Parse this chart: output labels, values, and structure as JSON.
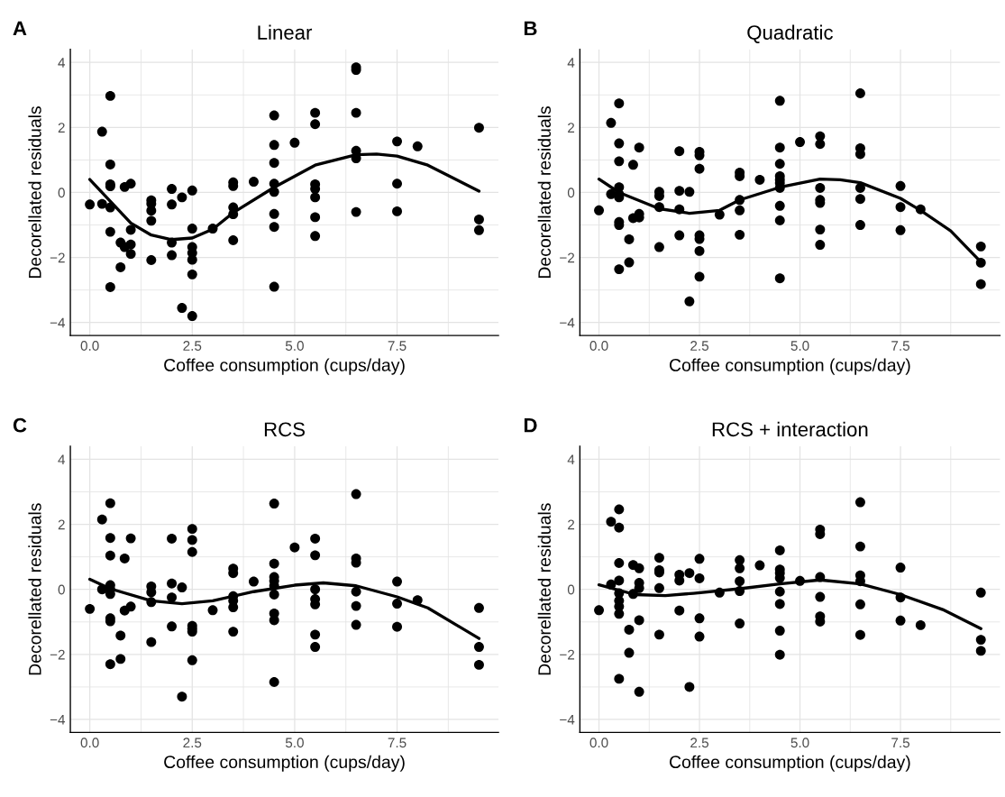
{
  "chart_data": [
    {
      "type": "scatter",
      "title": "Linear",
      "xlabel": "Coffee consumption (cups/day)",
      "ylabel": "Decorellated residuals",
      "annotations": [
        "A"
      ],
      "grid": true,
      "legend": false,
      "marker": "circle",
      "xlim": [
        -0.475,
        9.975
      ],
      "ylim": [
        -4.4,
        4.4
      ],
      "xticks": [
        {
          "value": 0,
          "label": "0.0"
        },
        {
          "value": 2.5,
          "label": "2.5"
        },
        {
          "value": 5,
          "label": "5.0"
        },
        {
          "value": 7.5,
          "label": "7.5"
        }
      ],
      "yticks": [
        -4,
        -2,
        0,
        2,
        4
      ],
      "series": [
        {
          "color": "#000000",
          "x": [
            0,
            0.3,
            0.3,
            0.5,
            0.5,
            0.5,
            0.5,
            0.5,
            0.5,
            0.5,
            0.75,
            0.75,
            0.85,
            0.85,
            1,
            1,
            1,
            1,
            1.5,
            1.5,
            1.5,
            1.5,
            1.5,
            2,
            2,
            2,
            2,
            2.25,
            2.25,
            2.5,
            2.5,
            2.5,
            2.5,
            2.5,
            2.5,
            2.5,
            3,
            3.5,
            3.5,
            3.5,
            3.5,
            3.5,
            4,
            4.5,
            4.5,
            4.5,
            4.5,
            4.5,
            4.5,
            4.5,
            4.5,
            5,
            5.5,
            5.5,
            5.5,
            5.5,
            5.5,
            5.5,
            5.5,
            6.5,
            6.5,
            6.5,
            6.5,
            6.5,
            6.5,
            7.5,
            7.5,
            7.5,
            8,
            9.5,
            9.5,
            9.5
          ],
          "values": [
            -0.37,
            1.87,
            -0.35,
            2.97,
            0.86,
            0.25,
            0.19,
            -0.46,
            -1.21,
            -2.91,
            -1.54,
            -2.3,
            0.17,
            -1.68,
            0.27,
            -1.15,
            -1.6,
            -1.89,
            -0.24,
            -0.35,
            -0.56,
            -0.87,
            -2.08,
            0.11,
            -0.37,
            -1.54,
            -1.93,
            -0.15,
            -3.55,
            0.06,
            -1.11,
            -1.68,
            -1.86,
            -2.07,
            -2.52,
            -3.8,
            -1.11,
            0.31,
            0.2,
            -0.46,
            -0.67,
            -1.47,
            0.33,
            2.37,
            1.46,
            0.91,
            0.27,
            0.02,
            -0.66,
            -1.06,
            -2.9,
            1.53,
            2.45,
            2.1,
            0.25,
            0.11,
            -0.15,
            -0.76,
            -1.34,
            3.85,
            3.77,
            2.45,
            1.28,
            1.05,
            -0.6,
            1.57,
            0.27,
            -0.58,
            1.42,
            1.99,
            -0.83,
            -1.16
          ]
        },
        {
          "type": "line",
          "color": "#000000",
          "marker": "none",
          "line_style": "solid",
          "x": [
            0,
            1,
            1.5,
            2,
            2.5,
            3,
            3.5,
            4.5,
            5.5,
            6.5,
            7,
            7.5,
            8.25,
            9.5
          ],
          "values": [
            0.4,
            -0.94,
            -1.31,
            -1.45,
            -1.4,
            -1.13,
            -0.62,
            0.16,
            0.84,
            1.16,
            1.18,
            1.12,
            0.84,
            0.04
          ]
        }
      ]
    },
    {
      "type": "scatter",
      "title": "Quadratic",
      "xlabel": "Coffee consumption (cups/day)",
      "ylabel": "Decorellated residuals",
      "annotations": [
        "B"
      ],
      "grid": true,
      "legend": false,
      "marker": "circle",
      "xlim": [
        -0.475,
        9.975
      ],
      "ylim": [
        -4.4,
        4.4
      ],
      "xticks": [
        {
          "value": 0,
          "label": "0.0"
        },
        {
          "value": 2.5,
          "label": "2.5"
        },
        {
          "value": 5,
          "label": "5.0"
        },
        {
          "value": 7.5,
          "label": "7.5"
        }
      ],
      "yticks": [
        -4,
        -2,
        0,
        2,
        4
      ],
      "series": [
        {
          "color": "#000000",
          "x": [
            0,
            0.3,
            0.3,
            0.5,
            0.5,
            0.5,
            0.5,
            0.5,
            0.5,
            0.5,
            0.5,
            0.5,
            0.75,
            0.75,
            0.85,
            0.85,
            1,
            1,
            1,
            1.5,
            1.5,
            1.5,
            1.5,
            2,
            2,
            2,
            2,
            2.25,
            2.25,
            2.5,
            2.5,
            2.5,
            2.5,
            2.5,
            2.5,
            2.5,
            3,
            3.5,
            3.5,
            3.5,
            3.5,
            3.5,
            4,
            4.5,
            4.5,
            4.5,
            4.5,
            4.5,
            4.5,
            4.5,
            4.5,
            4.5,
            4.5,
            5,
            5.5,
            5.5,
            5.5,
            5.5,
            5.5,
            5.5,
            5.5,
            6.5,
            6.5,
            6.5,
            6.5,
            6.5,
            6.5,
            7.5,
            7.5,
            7.5,
            8,
            9.5,
            9.5,
            9.5
          ],
          "values": [
            -0.55,
            2.14,
            -0.05,
            2.74,
            1.51,
            0.96,
            0.16,
            -0.05,
            -0.15,
            -0.91,
            -1.0,
            -2.36,
            -1.44,
            -2.15,
            0.85,
            -0.79,
            1.38,
            -0.66,
            -0.77,
            0.02,
            -0.11,
            -0.45,
            -1.68,
            1.27,
            0.05,
            -0.52,
            -1.32,
            0.02,
            -3.35,
            1.25,
            1.14,
            0.73,
            -1.32,
            -1.43,
            -1.8,
            -2.59,
            -0.68,
            0.61,
            0.5,
            -0.23,
            -0.55,
            -1.3,
            0.39,
            2.82,
            1.38,
            0.88,
            0.5,
            0.39,
            0.29,
            0.14,
            -0.41,
            -0.86,
            -2.64,
            1.55,
            1.73,
            1.49,
            0.14,
            -0.23,
            -0.32,
            -1.14,
            -1.61,
            3.05,
            1.36,
            1.18,
            0.14,
            -0.2,
            -1.0,
            0.2,
            -0.45,
            -1.16,
            -0.52,
            -1.66,
            -2.16,
            -2.82
          ]
        },
        {
          "type": "line",
          "color": "#000000",
          "marker": "none",
          "line_style": "solid",
          "x": [
            0,
            0.5,
            1.5,
            2.25,
            3,
            3.5,
            4.5,
            5.5,
            6,
            6.5,
            7.5,
            8,
            8.75,
            9.5
          ],
          "values": [
            0.41,
            0,
            -0.5,
            -0.64,
            -0.55,
            -0.23,
            0.16,
            0.41,
            0.39,
            0.3,
            -0.18,
            -0.55,
            -1.18,
            -2.14
          ]
        }
      ]
    },
    {
      "type": "scatter",
      "title": "RCS",
      "xlabel": "Coffee consumption (cups/day)",
      "ylabel": "Decorellated residuals",
      "annotations": [
        "C"
      ],
      "grid": true,
      "legend": false,
      "marker": "circle",
      "xlim": [
        -0.475,
        9.975
      ],
      "ylim": [
        -4.4,
        4.4
      ],
      "xticks": [
        {
          "value": 0,
          "label": "0.0"
        },
        {
          "value": 2.5,
          "label": "2.5"
        },
        {
          "value": 5,
          "label": "5.0"
        },
        {
          "value": 7.5,
          "label": "7.5"
        }
      ],
      "yticks": [
        -4,
        -2,
        0,
        2,
        4
      ],
      "series": [
        {
          "color": "#000000",
          "x": [
            0,
            0.3,
            0.3,
            0.5,
            0.5,
            0.5,
            0.5,
            0.5,
            0.5,
            0.5,
            0.5,
            0.5,
            0.75,
            0.75,
            0.85,
            0.85,
            1,
            1,
            1.5,
            1.5,
            1.5,
            1.5,
            2,
            2,
            2,
            2,
            2.25,
            2.25,
            2.5,
            2.5,
            2.5,
            2.5,
            2.5,
            2.5,
            2.5,
            3,
            3.5,
            3.5,
            3.5,
            3.5,
            3.5,
            3.5,
            4,
            4.5,
            4.5,
            4.5,
            4.5,
            4.5,
            4.5,
            4.5,
            4.5,
            4.5,
            5,
            5.5,
            5.5,
            5.5,
            5.5,
            5.5,
            5.5,
            5.5,
            6.5,
            6.5,
            6.5,
            6.5,
            6.5,
            6.5,
            7.5,
            7.5,
            7.5,
            8,
            9.5,
            9.5,
            9.5
          ],
          "values": [
            -0.6,
            2.15,
            0,
            2.65,
            1.58,
            1.04,
            0.13,
            0,
            -0.14,
            -0.89,
            -0.98,
            -2.3,
            -1.42,
            -2.14,
            0.95,
            -0.65,
            1.57,
            -0.53,
            0.09,
            -0.09,
            -0.39,
            -1.62,
            1.56,
            0.18,
            -0.25,
            -1.14,
            0.06,
            -3.3,
            1.86,
            1.52,
            1.15,
            -1.12,
            -1.21,
            -1.3,
            -2.18,
            -0.64,
            0.64,
            0.5,
            -0.21,
            -0.35,
            -0.55,
            -1.3,
            0.24,
            2.64,
            0.79,
            0.38,
            0.26,
            0.11,
            -0.16,
            -0.74,
            -0.95,
            -2.85,
            1.29,
            1.56,
            1.05,
            0,
            -0.3,
            -0.46,
            -1.39,
            -1.77,
            2.93,
            0.95,
            0.82,
            -0.07,
            -0.51,
            -1.09,
            0.24,
            -0.44,
            -1.15,
            -0.33,
            -0.57,
            -1.77,
            -2.32
          ]
        },
        {
          "type": "line",
          "color": "#000000",
          "marker": "none",
          "line_style": "solid",
          "x": [
            0,
            0.5,
            1.5,
            2.25,
            3,
            4,
            5,
            5.7,
            6.5,
            7.5,
            8.25,
            9.5
          ],
          "values": [
            0.31,
            0.02,
            -0.35,
            -0.44,
            -0.35,
            -0.07,
            0.13,
            0.2,
            0.11,
            -0.23,
            -0.57,
            -1.51
          ]
        }
      ]
    },
    {
      "type": "scatter",
      "title": "RCS + interaction",
      "xlabel": "Coffee consumption (cups/day)",
      "ylabel": "Decorellated residuals",
      "annotations": [
        "D"
      ],
      "grid": true,
      "legend": false,
      "marker": "circle",
      "xlim": [
        -0.475,
        9.975
      ],
      "ylim": [
        -4.4,
        4.4
      ],
      "xticks": [
        {
          "value": 0,
          "label": "0.0"
        },
        {
          "value": 2.5,
          "label": "2.5"
        },
        {
          "value": 5,
          "label": "5.0"
        },
        {
          "value": 7.5,
          "label": "7.5"
        }
      ],
      "yticks": [
        -4,
        -2,
        0,
        2,
        4
      ],
      "series": [
        {
          "color": "#000000",
          "x": [
            0,
            0.3,
            0.3,
            0.5,
            0.5,
            0.5,
            0.5,
            0.5,
            0.5,
            0.5,
            0.5,
            0.5,
            0.75,
            0.75,
            0.85,
            0.85,
            1,
            1,
            1,
            1,
            1,
            1.5,
            1.5,
            1.5,
            1.5,
            1.5,
            2,
            2,
            2,
            2.25,
            2.25,
            2.5,
            2.5,
            2.5,
            2.5,
            3,
            3.5,
            3.5,
            3.5,
            3.5,
            3.5,
            4,
            4.5,
            4.5,
            4.5,
            4.5,
            4.5,
            4.5,
            4.5,
            4.5,
            5,
            5.5,
            5.5,
            5.5,
            5.5,
            5.5,
            5.5,
            6.5,
            6.5,
            6.5,
            6.5,
            6.5,
            6.5,
            7.5,
            7.5,
            7.5,
            8,
            9.5,
            9.5,
            9.5
          ],
          "values": [
            -0.64,
            2.08,
            0.15,
            2.46,
            1.9,
            0.81,
            0.27,
            -0.12,
            -0.35,
            -0.53,
            -0.75,
            -2.75,
            -1.24,
            -1.95,
            0.75,
            -0.14,
            0.65,
            0.2,
            0.04,
            -0.95,
            -3.15,
            0.97,
            0.59,
            0.52,
            0.04,
            -1.39,
            0.45,
            0.27,
            -0.65,
            0.5,
            -3.0,
            0.94,
            0.34,
            -0.89,
            -1.45,
            -0.1,
            0.9,
            0.65,
            0.25,
            -0.05,
            -1.05,
            0.74,
            1.2,
            0.61,
            0.5,
            0.35,
            -0.07,
            -0.45,
            -1.27,
            -2.01,
            0.26,
            1.84,
            1.7,
            0.38,
            -0.23,
            -0.83,
            -0.99,
            2.68,
            1.32,
            0.43,
            0.25,
            -0.46,
            -1.4,
            0.67,
            -0.25,
            -0.96,
            -1.1,
            -0.1,
            -1.55,
            -1.89
          ]
        },
        {
          "type": "line",
          "color": "#000000",
          "marker": "none",
          "line_style": "solid",
          "x": [
            0,
            0.9,
            1.65,
            2.35,
            3.5,
            4.5,
            5.5,
            6.5,
            7.5,
            8.55,
            9.5
          ],
          "values": [
            0.14,
            -0.16,
            -0.19,
            -0.12,
            0.02,
            0.17,
            0.29,
            0.17,
            -0.16,
            -0.62,
            -1.21
          ]
        }
      ]
    }
  ]
}
